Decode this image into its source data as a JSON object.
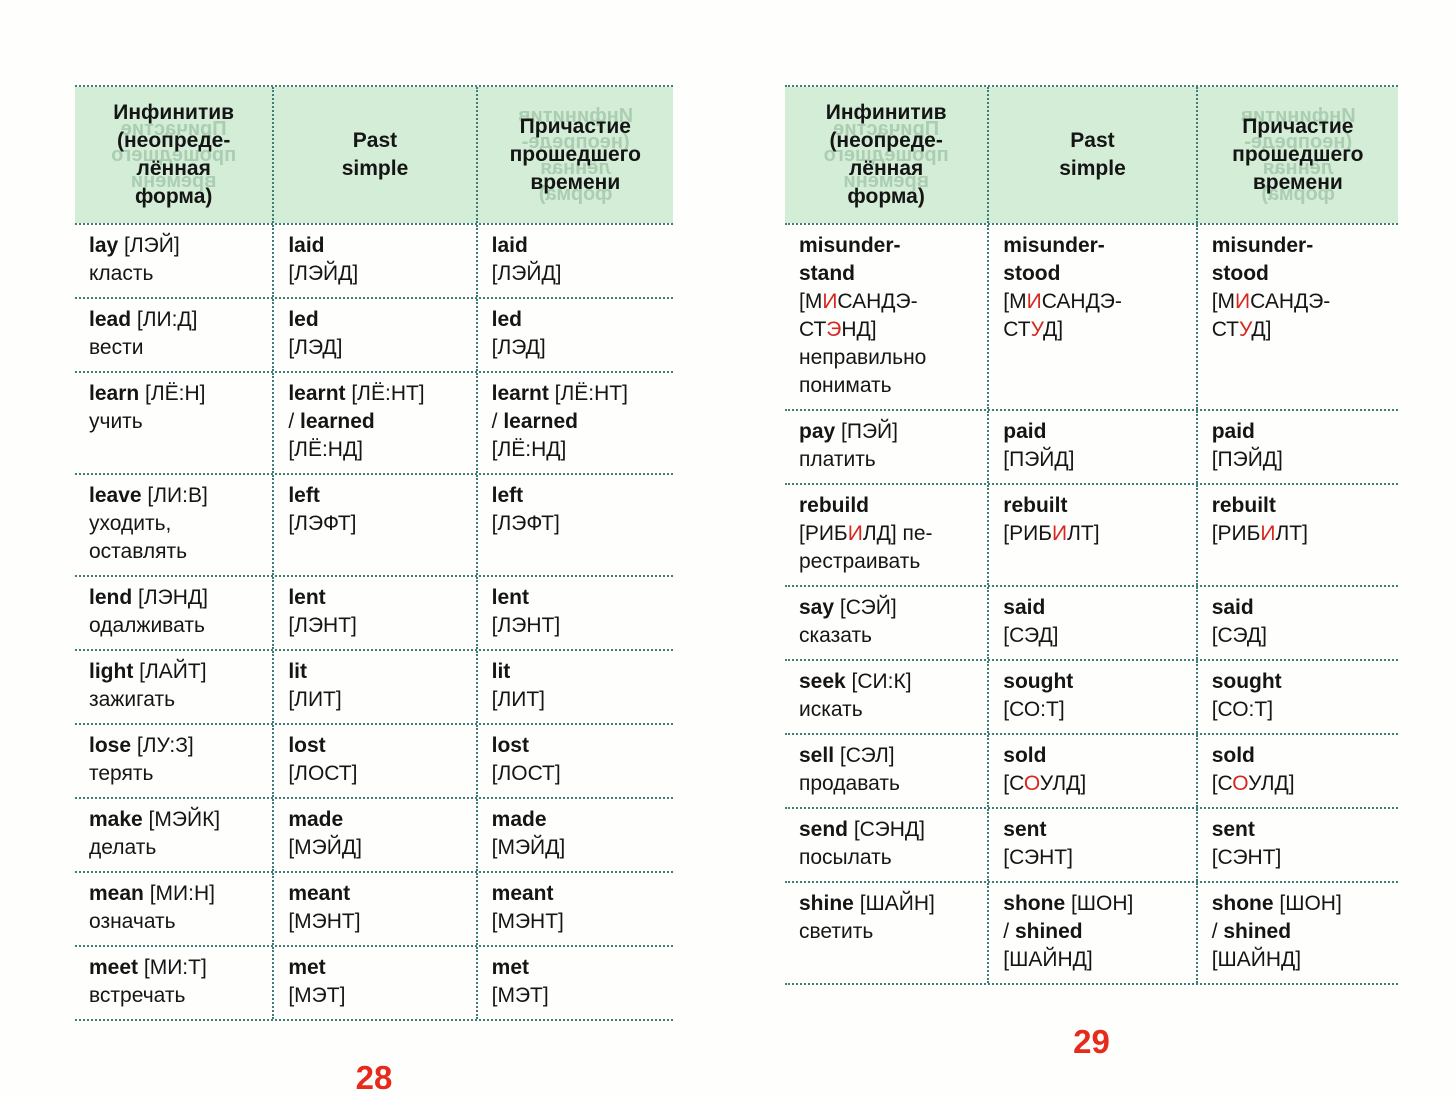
{
  "meta": {
    "accent_red": "#d6281e",
    "page_number_red": "#e62a1c",
    "header_background": "#d3edd6",
    "dotted_border_color": "#3f7d78"
  },
  "pages": [
    {
      "page_number": "28",
      "headers": {
        "infinitive": "Инфинитив<br>(неопреде-<br>лённая<br>форма)",
        "past_simple": "Past<br>simple",
        "past_participle": "Причастие<br>прошедшего<br>времени"
      },
      "rows": [
        {
          "infinitive": "<b>lay</b> [ЛЭЙ]<br>класть",
          "past_simple": "<b>laid</b><br>[ЛЭЙД]",
          "past_participle": "<b>laid</b><br>[ЛЭЙД]"
        },
        {
          "infinitive": "<b>lead</b> [ЛИ:Д]<br>вести",
          "past_simple": "<b>led</b><br>[ЛЭД]",
          "past_participle": "<b>led</b><br>[ЛЭД]"
        },
        {
          "infinitive": "<b>learn</b> [ЛЁ:Н]<br>учить",
          "past_simple": "<b>learnt</b> [ЛЁ:НТ]<br>/ <b>learned</b><br>[ЛЁ:НД]",
          "past_participle": "<b>learnt</b> [ЛЁ:НТ]<br>/ <b>learned</b><br>[ЛЁ:НД]"
        },
        {
          "infinitive": "<b>leave</b> [ЛИ:В]<br>уходить,<br>оставлять",
          "past_simple": "<b>left</b><br>[ЛЭФТ]",
          "past_participle": "<b>left</b><br>[ЛЭФТ]"
        },
        {
          "infinitive": "<b>lend</b> [ЛЭНД]<br>одалживать",
          "past_simple": "<b>lent</b><br>[ЛЭНТ]",
          "past_participle": "<b>lent</b><br>[ЛЭНТ]"
        },
        {
          "infinitive": "<b>light</b> [ЛАЙТ]<br>зажигать",
          "past_simple": "<b>lit</b><br>[ЛИТ]",
          "past_participle": "<b>lit</b><br>[ЛИТ]"
        },
        {
          "infinitive": "<b>lose</b> [ЛУ:З]<br>терять",
          "past_simple": "<b>lost</b><br>[ЛОСТ]",
          "past_participle": "<b>lost</b><br>[ЛОСТ]"
        },
        {
          "infinitive": "<b>make</b> [МЭЙК]<br>делать",
          "past_simple": "<b>made</b><br>[МЭЙД]",
          "past_participle": "<b>made</b><br>[МЭЙД]"
        },
        {
          "infinitive": "<b>mean</b> [МИ:Н]<br>означать",
          "past_simple": "<b>meant</b><br>[МЭНТ]",
          "past_participle": "<b>meant</b><br>[МЭНТ]"
        },
        {
          "infinitive": "<b>meet</b> [МИ:Т]<br>встречать",
          "past_simple": "<b>met</b><br>[МЭТ]",
          "past_participle": "<b>met</b><br>[МЭТ]"
        }
      ]
    },
    {
      "page_number": "29",
      "headers": {
        "infinitive": "Инфинитив<br>(неопреде-<br>лённая<br>форма)",
        "past_simple": "Past<br>simple",
        "past_participle": "Причастие<br>прошедшего<br>времени"
      },
      "rows": [
        {
          "infinitive": "<b>misunder-</b><br><b>stand</b><br>[М<span class='rd'>И</span>САНДЭ-<br>СТ<span class='rd'>Э</span>НД]<br>неправильно<br>понимать",
          "past_simple": "<b>misunder-</b><br><b>stood</b><br>[М<span class='rd'>И</span>САНДЭ-<br>СТ<span class='rd'>У</span>Д]",
          "past_participle": "<b>misunder-</b><br><b>stood</b><br>[М<span class='rd'>И</span>САНДЭ-<br>СТ<span class='rd'>У</span>Д]"
        },
        {
          "infinitive": "<b>pay</b> [ПЭЙ]<br>платить",
          "past_simple": "<b>paid</b><br>[ПЭЙД]",
          "past_participle": "<b>paid</b><br>[ПЭЙД]"
        },
        {
          "infinitive": "<b>rebuild</b><br>[РИБ<span class='rd'>И</span>ЛД] пе-<br>рестраивать",
          "past_simple": "<b>rebuilt</b><br>[РИБ<span class='rd'>И</span>ЛТ]",
          "past_participle": "<b>rebuilt</b><br>[РИБ<span class='rd'>И</span>ЛТ]"
        },
        {
          "infinitive": "<b>say</b> [СЭЙ]<br>сказать",
          "past_simple": "<b>said</b><br>[СЭД]",
          "past_participle": "<b>said</b><br>[СЭД]"
        },
        {
          "infinitive": "<b>seek</b> [СИ:К]<br>искать",
          "past_simple": "<b>sought</b><br>[СО:Т]",
          "past_participle": "<b>sought</b><br>[СО:Т]"
        },
        {
          "infinitive": "<b>sell</b> [СЭЛ]<br>продавать",
          "past_simple": "<b>sold</b><br>[С<span class='rd'>О</span>УЛД]",
          "past_participle": "<b>sold</b><br>[С<span class='rd'>О</span>УЛД]"
        },
        {
          "infinitive": "<b>send</b> [СЭНД]<br>посылать",
          "past_simple": "<b>sent</b><br>[СЭНТ]",
          "past_participle": "<b>sent</b><br>[СЭНТ]"
        },
        {
          "infinitive": "<b>shine</b> [ШАЙН]<br>светить",
          "past_simple": "<b>shone</b> [ШОН]<br>/ <b>shined</b><br>[ШАЙНД]",
          "past_participle": "<b>shone</b> [ШОН]<br>/ <b>shined</b><br>[ШАЙНД]"
        }
      ]
    }
  ]
}
